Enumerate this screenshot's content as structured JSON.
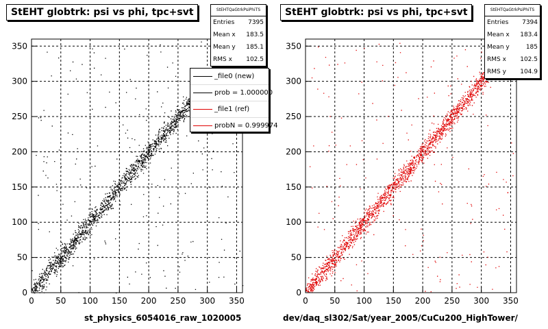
{
  "chart_data": [
    {
      "type": "scatter",
      "title": "StEHT globtrk: psi vs phi, tpc+svt",
      "xlabel": "st_physics_6054016_raw_1020005",
      "ylabel": "",
      "xlim": [
        0,
        360
      ],
      "ylim": [
        0,
        360
      ],
      "xticks": [
        0,
        50,
        100,
        150,
        200,
        250,
        300,
        350
      ],
      "yticks": [
        0,
        50,
        100,
        150,
        200,
        250,
        300,
        350
      ],
      "grid": true,
      "point_color": "#000000",
      "stats": {
        "header": "StEHTQaGtrkPsiPhiTS",
        "rows": [
          {
            "label": "Entries",
            "value": "7395"
          },
          {
            "label": "Mean x",
            "value": "183.5"
          },
          {
            "label": "Mean y",
            "value": "185.1"
          },
          {
            "label": "RMS x",
            "value": "102.5"
          }
        ]
      },
      "legend": {
        "placement": "top-right",
        "entries": [
          {
            "label": "_file0 (new)",
            "color": "#000000"
          },
          {
            "label": "prob = 1.000000",
            "color": "#000000"
          },
          {
            "label": "_file1 (ref)",
            "color": "#e00000"
          },
          {
            "label": "probN = 0.999974",
            "color": "#e00000"
          }
        ]
      },
      "distribution": {
        "relation": "y ≈ x",
        "entries": 7395,
        "spread": 12
      }
    },
    {
      "type": "scatter",
      "title": "StEHT globtrk: psi vs phi, tpc+svt",
      "xlabel": "dev/daq_sl302/Sat/year_2005/CuCu200_HighTower/",
      "ylabel": "",
      "xlim": [
        0,
        360
      ],
      "ylim": [
        0,
        360
      ],
      "xticks": [
        0,
        50,
        100,
        150,
        200,
        250,
        300,
        350
      ],
      "yticks": [
        0,
        50,
        100,
        150,
        200,
        250,
        300,
        350
      ],
      "grid": true,
      "point_color": "#e00000",
      "stats": {
        "header": "StEHTQaGtrkPsiPhiTS",
        "rows": [
          {
            "label": "Entries",
            "value": "7394"
          },
          {
            "label": "Mean x",
            "value": "183.4"
          },
          {
            "label": "Mean y",
            "value": "185"
          },
          {
            "label": "RMS x",
            "value": "102.5"
          },
          {
            "label": "RMS y",
            "value": "104.9"
          }
        ]
      },
      "distribution": {
        "relation": "y ≈ x",
        "entries": 7394,
        "spread": 12
      }
    }
  ]
}
